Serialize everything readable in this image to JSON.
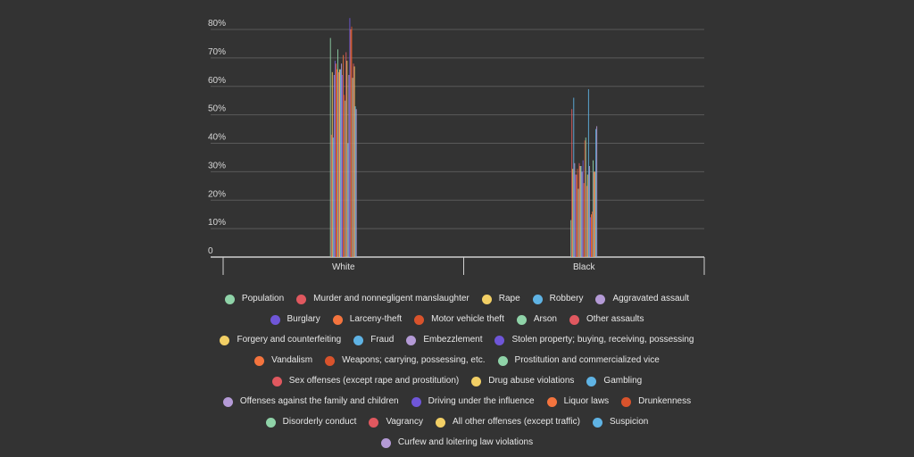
{
  "chart_data": {
    "type": "bar",
    "categories": [
      "White",
      "Black"
    ],
    "ylim": [
      0,
      80
    ],
    "yticks": [
      "0",
      "10%",
      "20%",
      "30%",
      "40%",
      "50%",
      "60%",
      "70%",
      "80%"
    ],
    "legend_position": "bottom",
    "grid": true,
    "series": [
      {
        "name": "Population",
        "color": "#8fd3a8",
        "values": [
          77,
          13
        ]
      },
      {
        "name": "Murder and nonnegligent manslaughter",
        "color": "#e0585f",
        "values": [
          43,
          52
        ]
      },
      {
        "name": "Rape",
        "color": "#f2cf65",
        "values": [
          65,
          31
        ]
      },
      {
        "name": "Robbery",
        "color": "#5fb3e4",
        "values": [
          42,
          56
        ]
      },
      {
        "name": "Aggravated assault",
        "color": "#b49ad6",
        "values": [
          64,
          33
        ]
      },
      {
        "name": "Burglary",
        "color": "#6f56d8",
        "values": [
          69,
          29
        ]
      },
      {
        "name": "Larceny-theft",
        "color": "#f4743e",
        "values": [
          68,
          29
        ]
      },
      {
        "name": "Motor vehicle theft",
        "color": "#d9532c",
        "values": [
          66,
          31
        ]
      },
      {
        "name": "Arson",
        "color": "#8fd3a8",
        "values": [
          73,
          24
        ]
      },
      {
        "name": "Other assaults",
        "color": "#e0585f",
        "values": [
          65,
          33
        ]
      },
      {
        "name": "Forgery and counterfeiting",
        "color": "#f2cf65",
        "values": [
          66,
          32
        ]
      },
      {
        "name": "Fraud",
        "color": "#5fb3e4",
        "values": [
          66,
          32
        ]
      },
      {
        "name": "Embezzlement",
        "color": "#b49ad6",
        "values": [
          68,
          30
        ]
      },
      {
        "name": "Stolen property; buying, receiving, possessing",
        "color": "#6f56d8",
        "values": [
          64,
          34
        ]
      },
      {
        "name": "Vandalism",
        "color": "#f4743e",
        "values": [
          71,
          26
        ]
      },
      {
        "name": "Weapons; carrying, possessing, etc.",
        "color": "#d9532c",
        "values": [
          57,
          41
        ]
      },
      {
        "name": "Prostitution and commercialized vice",
        "color": "#8fd3a8",
        "values": [
          55,
          42
        ]
      },
      {
        "name": "Sex offenses (except rape and prostitution)",
        "color": "#e0585f",
        "values": [
          72,
          25
        ]
      },
      {
        "name": "Drug abuse violations",
        "color": "#f2cf65",
        "values": [
          69,
          29
        ]
      },
      {
        "name": "Gambling",
        "color": "#5fb3e4",
        "values": [
          40,
          59
        ]
      },
      {
        "name": "Offenses against the family and children",
        "color": "#b49ad6",
        "values": [
          64,
          32
        ]
      },
      {
        "name": "Driving under the influence",
        "color": "#6f56d8",
        "values": [
          84,
          14
        ]
      },
      {
        "name": "Liquor laws",
        "color": "#f4743e",
        "values": [
          80,
          15
        ]
      },
      {
        "name": "Drunkenness",
        "color": "#d9532c",
        "values": [
          81,
          16
        ]
      },
      {
        "name": "Disorderly conduct",
        "color": "#8fd3a8",
        "values": [
          63,
          34
        ]
      },
      {
        "name": "Vagrancy",
        "color": "#e0585f",
        "values": [
          68,
          30
        ]
      },
      {
        "name": "All other offenses (except traffic)",
        "color": "#f2cf65",
        "values": [
          67,
          30
        ]
      },
      {
        "name": "Suspicion",
        "color": "#5fb3e4",
        "values": [
          53,
          45
        ]
      },
      {
        "name": "Curfew and loitering law violations",
        "color": "#b49ad6",
        "values": [
          52,
          46
        ]
      }
    ]
  }
}
